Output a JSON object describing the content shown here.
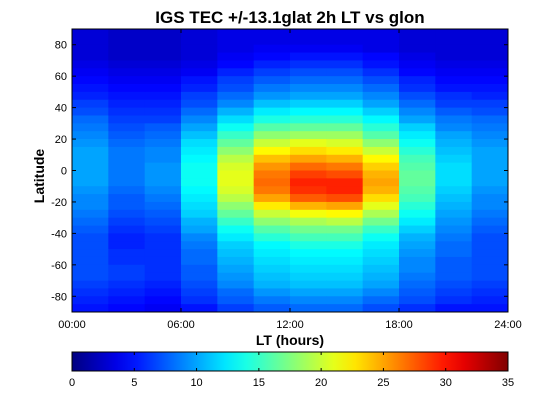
{
  "chart_data": {
    "type": "heatmap",
    "title": "IGS TEC +/-13.1glat 2h LT vs glon",
    "xlabel": "LT (hours)",
    "ylabel": "Latitude",
    "x_tick_labels": [
      "00:00",
      "06:00",
      "12:00",
      "18:00",
      "24:00"
    ],
    "y_tick_labels": [
      "80",
      "60",
      "40",
      "20",
      "0",
      "-20",
      "-40",
      "-60",
      "-80"
    ],
    "x_ticks": [
      0,
      6,
      12,
      18,
      24
    ],
    "y_ticks": [
      80,
      60,
      40,
      20,
      0,
      -20,
      -40,
      -60,
      -80
    ],
    "xlim": [
      0,
      24
    ],
    "ylim": [
      -90,
      90
    ],
    "colorbar": {
      "colormap": "jet",
      "range": [
        0,
        35
      ],
      "ticks": [
        0,
        5,
        10,
        15,
        20,
        25,
        30,
        35
      ],
      "tick_labels": [
        "0",
        "5",
        "10",
        "15",
        "20",
        "25",
        "30",
        "35"
      ]
    },
    "x_bin_edges_hours": [
      0,
      2,
      4,
      6,
      8,
      10,
      12,
      14,
      16,
      18,
      20,
      22,
      24
    ],
    "lat_bin_edges_deg": [
      90,
      85,
      80,
      75,
      70,
      65,
      60,
      55,
      50,
      45,
      40,
      35,
      30,
      25,
      20,
      15,
      10,
      5,
      0,
      -5,
      -10,
      -15,
      -20,
      -25,
      -30,
      -35,
      -40,
      -45,
      -50,
      -55,
      -60,
      -65,
      -70,
      -75,
      -80,
      -85,
      -90
    ],
    "values": [
      [
        3,
        2.5,
        2.5,
        3,
        3.5,
        3.5,
        3.5,
        3.5,
        3.5,
        3,
        3,
        3
      ],
      [
        3,
        2.5,
        2.5,
        3,
        3.5,
        3.5,
        3.5,
        3.5,
        3.5,
        3,
        3,
        3
      ],
      [
        3,
        2.5,
        2.5,
        3,
        3.5,
        4,
        4,
        4,
        3.5,
        3,
        3,
        3
      ],
      [
        3,
        2.5,
        2.5,
        3,
        4,
        4.5,
        5,
        5,
        4.5,
        3.5,
        3,
        3
      ],
      [
        3.5,
        3,
        3,
        3.5,
        4.5,
        5.5,
        6,
        6,
        5,
        4,
        3.5,
        3.5
      ],
      [
        4,
        3.5,
        3.5,
        4,
        5.5,
        6.5,
        7,
        7,
        6,
        4.5,
        4,
        4
      ],
      [
        4.5,
        4,
        4,
        5,
        6.5,
        7.5,
        8,
        8,
        7,
        5.5,
        4.5,
        4.5
      ],
      [
        5,
        4.5,
        4.5,
        5.5,
        7,
        8.5,
        9,
        9,
        8,
        6,
        5,
        5
      ],
      [
        5.5,
        5,
        5,
        6.5,
        8,
        9.5,
        10,
        10,
        9,
        7,
        6,
        5.5
      ],
      [
        6.5,
        5.5,
        5.5,
        7,
        9,
        11,
        11.5,
        11.5,
        10,
        8,
        6.5,
        6.5
      ],
      [
        7,
        6,
        6,
        8,
        10.5,
        12.5,
        13,
        13,
        11.5,
        9,
        7.5,
        7
      ],
      [
        8,
        6.5,
        6.5,
        9,
        12,
        14,
        14.5,
        14.5,
        13,
        10,
        8.5,
        8
      ],
      [
        8.5,
        7,
        7.5,
        10,
        13.5,
        16,
        16.5,
        16.5,
        14.5,
        11.5,
        9,
        8.5
      ],
      [
        9,
        7.5,
        8,
        11,
        15,
        18,
        18.5,
        18.5,
        16,
        12.5,
        10,
        9
      ],
      [
        9.5,
        8,
        8.5,
        12,
        16.5,
        20,
        21,
        20.5,
        18,
        13.5,
        10.5,
        9.5
      ],
      [
        10,
        8.5,
        9,
        12.5,
        18,
        22,
        23,
        22.5,
        20,
        14.5,
        11,
        10
      ],
      [
        10,
        8.5,
        9,
        13,
        19.5,
        24,
        25,
        24.5,
        22,
        15.5,
        11.5,
        10
      ],
      [
        10,
        8.5,
        9.5,
        13.5,
        20.5,
        25.5,
        27,
        26.5,
        23.5,
        16,
        12,
        10
      ],
      [
        10,
        8.5,
        9.5,
        13.5,
        21,
        26.5,
        28.5,
        28,
        24.5,
        16.5,
        12,
        10
      ],
      [
        10,
        8.5,
        9.5,
        13.5,
        21,
        27,
        29.5,
        29.5,
        25,
        16.5,
        12,
        10
      ],
      [
        9.5,
        8,
        9,
        13,
        20.5,
        26.5,
        29,
        29.5,
        24.5,
        16,
        11.5,
        9.5
      ],
      [
        9,
        7.5,
        8.5,
        12.5,
        19.5,
        25,
        27.5,
        28,
        23,
        15.5,
        11,
        9
      ],
      [
        9,
        7.5,
        8,
        12,
        18,
        22.5,
        24.5,
        25,
        21,
        14.5,
        10.5,
        9
      ],
      [
        8.5,
        7,
        7.5,
        11.5,
        16.5,
        20,
        21.5,
        22,
        19,
        13.5,
        10,
        8.5
      ],
      [
        8,
        6.5,
        7,
        10.5,
        15,
        18,
        19,
        19.5,
        17,
        12.5,
        9.5,
        8
      ],
      [
        7.5,
        6,
        6.5,
        10,
        13.5,
        16,
        17,
        17,
        15,
        11.5,
        9,
        7.5
      ],
      [
        7,
        5.5,
        6,
        9,
        12.5,
        14.5,
        15.5,
        15.5,
        13.5,
        10.5,
        8.5,
        7
      ],
      [
        7,
        5.5,
        6,
        8.5,
        11.5,
        13,
        14,
        14,
        12.5,
        10,
        8,
        7
      ],
      [
        7,
        6,
        6,
        8,
        11,
        12.5,
        13,
        13,
        12,
        9.5,
        8,
        7
      ],
      [
        7,
        6,
        6,
        8,
        10.5,
        12,
        12.5,
        12.5,
        11.5,
        9,
        7.5,
        7
      ],
      [
        7,
        6.5,
        6,
        7.5,
        10,
        11.5,
        12,
        12,
        11,
        9,
        7.5,
        7
      ],
      [
        7,
        6.5,
        6,
        7.5,
        9.5,
        11,
        11.5,
        11.5,
        10.5,
        8.5,
        7.5,
        7
      ],
      [
        6.5,
        6,
        5.5,
        7,
        9,
        10.5,
        11,
        11,
        10,
        8,
        7,
        6.5
      ],
      [
        6,
        5.5,
        5,
        6.5,
        8,
        9.5,
        10,
        10,
        9,
        7.5,
        6.5,
        6
      ],
      [
        5.5,
        5,
        4.5,
        6,
        7.5,
        8.5,
        9,
        9,
        8,
        7,
        6,
        5.5
      ],
      [
        5,
        4.5,
        4,
        5,
        6.5,
        7.5,
        8,
        8,
        7,
        6,
        5,
        5
      ]
    ]
  }
}
